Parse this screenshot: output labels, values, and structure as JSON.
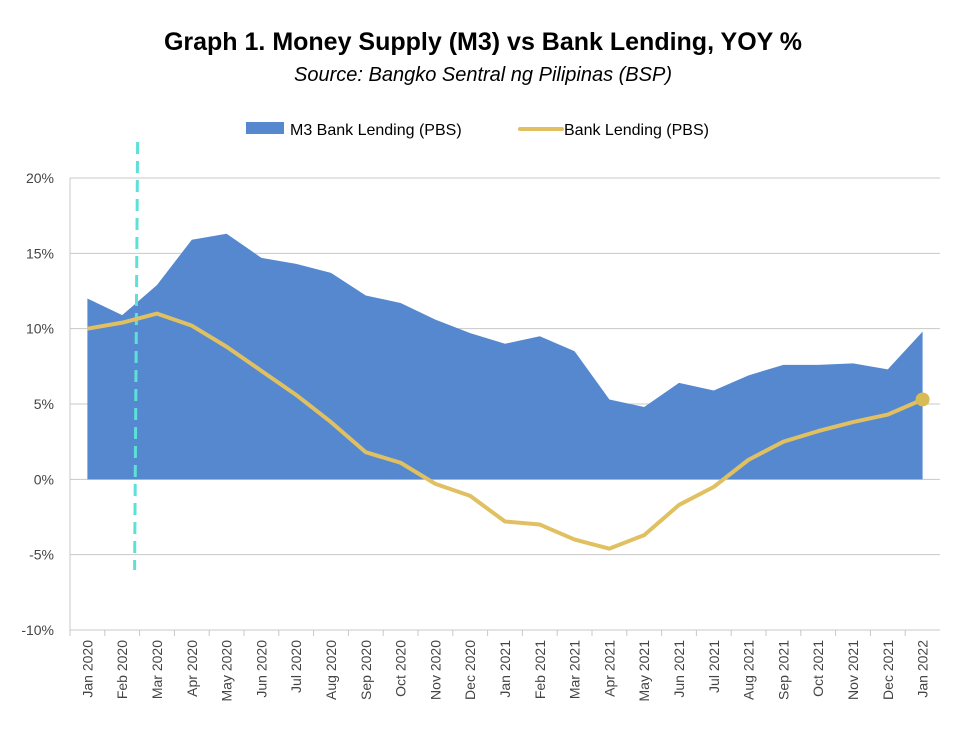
{
  "chart_data": {
    "type": "area+line",
    "title": "Graph 1. Money Supply (M3) vs Bank Lending, YOY %",
    "subtitle": "Source: Bangko Sentral ng Pilipinas (BSP)",
    "xlabel": "",
    "ylabel": "",
    "ylim": [
      -10,
      20
    ],
    "yticks": [
      -10,
      -5,
      0,
      5,
      10,
      15,
      20
    ],
    "ytick_labels": [
      "-10%",
      "-5%",
      "0%",
      "5%",
      "10%",
      "15%",
      "20%"
    ],
    "grid": true,
    "legend_position": "top",
    "categories": [
      "Jan 2020",
      "Feb 2020",
      "Mar 2020",
      "Apr 2020",
      "May 2020",
      "Jun 2020",
      "Jul 2020",
      "Aug 2020",
      "Sep 2020",
      "Oct 2020",
      "Nov 2020",
      "Dec 2020",
      "Jan 2021",
      "Feb 2021",
      "Mar 2021",
      "Apr 2021",
      "May 2021",
      "Jun 2021",
      "Jul 2021",
      "Aug 2021",
      "Sep 2021",
      "Oct 2021",
      "Nov 2021",
      "Dec 2021",
      "Jan 2022"
    ],
    "series": [
      {
        "name": "M3 Bank Lending (PBS)",
        "type": "area",
        "color": "#5588cf",
        "values": [
          12.0,
          10.9,
          12.9,
          15.9,
          16.3,
          14.7,
          14.3,
          13.7,
          12.2,
          11.7,
          10.6,
          9.7,
          9.0,
          9.5,
          8.5,
          5.3,
          4.8,
          6.4,
          5.9,
          6.9,
          7.6,
          7.6,
          7.7,
          7.3,
          9.8
        ]
      },
      {
        "name": "Bank Lending (PBS)",
        "type": "line",
        "color": "#e0c060",
        "values": [
          10.0,
          10.4,
          11.0,
          10.2,
          8.8,
          7.2,
          5.6,
          3.8,
          1.8,
          1.1,
          -0.3,
          -1.1,
          -2.8,
          -3.0,
          -4.0,
          -4.6,
          -3.7,
          -1.7,
          -0.5,
          1.3,
          2.5,
          3.2,
          3.8,
          4.3,
          5.3
        ]
      }
    ],
    "annotations": [
      {
        "type": "vertical-dashed-line",
        "between": [
          "Feb 2020",
          "Mar 2020"
        ],
        "color": "#5ee0d8"
      }
    ]
  }
}
